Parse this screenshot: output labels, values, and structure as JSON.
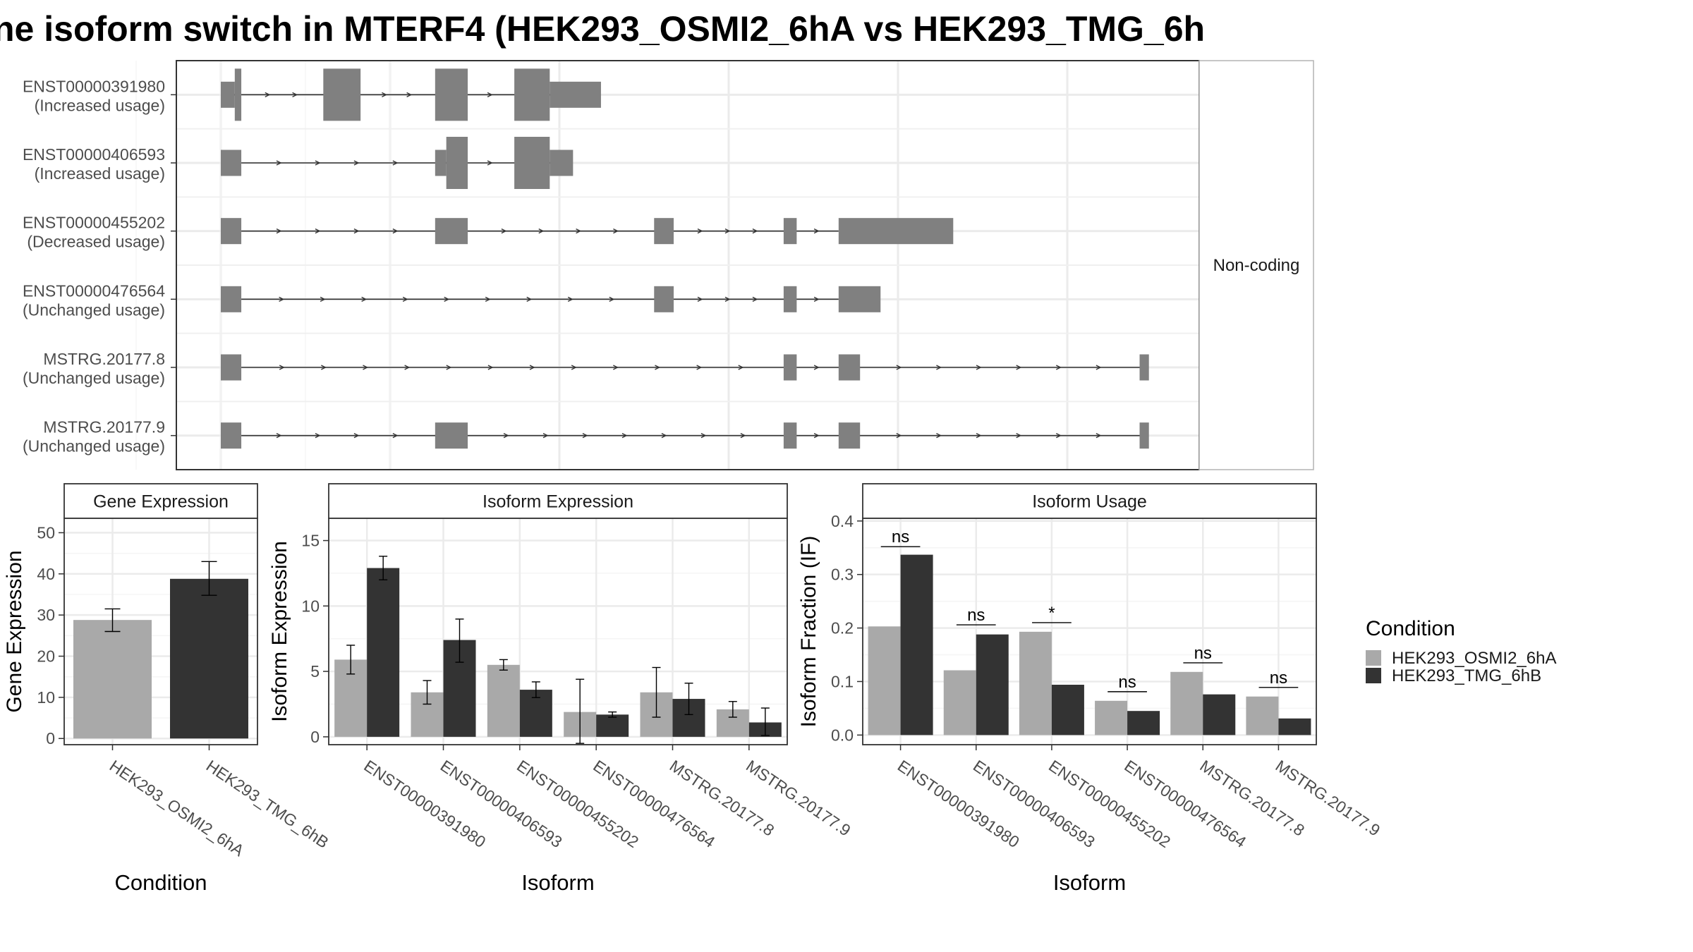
{
  "title": "ne isoform switch in MTERF4 (HEK293_OSMI2_6hA vs HEK293_TMG_6h",
  "colors": {
    "cond_a": "#a9a9a9",
    "cond_b": "#333333",
    "exon": "#808080",
    "grid": "#ebebeb",
    "panel_border": "#333333",
    "strip_fill": "#ffffff"
  },
  "structure": {
    "strip_label": "Non-coding",
    "x_range": [
      0,
      100
    ],
    "transcripts": [
      {
        "id": "ENST00000391980",
        "usage": "(Increased usage)",
        "exons": [
          [
            0,
            1.5,
            "narrow"
          ],
          [
            1.5,
            2.2,
            "thick"
          ],
          [
            11,
            15,
            "thick"
          ],
          [
            23,
            26.5,
            "thick"
          ],
          [
            31.5,
            35.3,
            "thick"
          ],
          [
            35.3,
            40.8,
            "narrow"
          ]
        ]
      },
      {
        "id": "ENST00000406593",
        "usage": "(Increased usage)",
        "exons": [
          [
            0,
            2.2,
            "narrow"
          ],
          [
            23,
            24.2,
            "narrow"
          ],
          [
            24.2,
            26.5,
            "thick"
          ],
          [
            31.5,
            35.3,
            "thick"
          ],
          [
            35.3,
            37.8,
            "narrow"
          ]
        ]
      },
      {
        "id": "ENST00000455202",
        "usage": "(Decreased usage)",
        "exons": [
          [
            0,
            2.2,
            "narrow"
          ],
          [
            23,
            26.5,
            "narrow"
          ],
          [
            46.5,
            48.6,
            "narrow"
          ],
          [
            60.4,
            61.8,
            "narrow"
          ],
          [
            66.3,
            78.6,
            "narrow"
          ]
        ]
      },
      {
        "id": "ENST00000476564",
        "usage": "(Unchanged usage)",
        "exons": [
          [
            0,
            2.2,
            "narrow"
          ],
          [
            46.5,
            48.6,
            "narrow"
          ],
          [
            60.4,
            61.8,
            "narrow"
          ],
          [
            66.3,
            70.8,
            "narrow"
          ]
        ]
      },
      {
        "id": "MSTRG.20177.8",
        "usage": "(Unchanged usage)",
        "exons": [
          [
            0,
            2.2,
            "narrow"
          ],
          [
            60.4,
            61.8,
            "narrow"
          ],
          [
            66.3,
            68.6,
            "narrow"
          ],
          [
            98.6,
            99.6,
            "narrow"
          ]
        ]
      },
      {
        "id": "MSTRG.20177.9",
        "usage": "(Unchanged usage)",
        "exons": [
          [
            0,
            2.2,
            "narrow"
          ],
          [
            23,
            26.5,
            "narrow"
          ],
          [
            60.4,
            61.8,
            "narrow"
          ],
          [
            66.3,
            68.6,
            "narrow"
          ],
          [
            98.6,
            99.6,
            "narrow"
          ]
        ]
      }
    ]
  },
  "chart_data": [
    {
      "type": "bar",
      "title": "Gene Expression",
      "xlabel": "Condition",
      "ylabel": "Gene Expression",
      "categories": [
        "HEK293_OSMI2_6hA",
        "HEK293_TMG_6hB"
      ],
      "values": [
        28.8,
        38.8
      ],
      "error": [
        [
          26.0,
          31.5
        ],
        [
          34.8,
          43.0
        ]
      ],
      "ylim": [
        -1.5,
        53.5
      ],
      "yticks": [
        "0",
        "10",
        "20",
        "30",
        "40",
        "50"
      ]
    },
    {
      "type": "bar",
      "title": "Isoform Expression",
      "xlabel": "Isoform",
      "ylabel": "Isoform Expression",
      "categories": [
        "ENST00000391980",
        "ENST00000406593",
        "ENST00000455202",
        "ENST00000476564",
        "MSTRG.20177.8",
        "MSTRG.20177.9"
      ],
      "series": [
        {
          "name": "HEK293_OSMI2_6hA",
          "values": [
            5.9,
            3.4,
            5.5,
            1.9,
            3.4,
            2.1
          ],
          "error": [
            [
              4.8,
              7.0
            ],
            [
              2.5,
              4.3
            ],
            [
              5.1,
              5.9
            ],
            [
              -0.5,
              4.4
            ],
            [
              1.5,
              5.3
            ],
            [
              1.5,
              2.7
            ]
          ]
        },
        {
          "name": "HEK293_TMG_6hB",
          "values": [
            12.9,
            7.4,
            3.6,
            1.7,
            2.9,
            1.1
          ],
          "error": [
            [
              12.0,
              13.8
            ],
            [
              5.7,
              9.0
            ],
            [
              3.0,
              4.2
            ],
            [
              1.5,
              1.9
            ],
            [
              1.7,
              4.1
            ],
            [
              0.1,
              2.2
            ]
          ]
        }
      ],
      "ylim": [
        -0.6,
        16.7
      ],
      "yticks": [
        "0",
        "5",
        "10",
        "15"
      ]
    },
    {
      "type": "bar",
      "title": "Isoform Usage",
      "xlabel": "Isoform",
      "ylabel": "Isoform Fraction (IF)",
      "categories": [
        "ENST00000391980",
        "ENST00000406593",
        "ENST00000455202",
        "ENST00000476564",
        "MSTRG.20177.8",
        "MSTRG.20177.9"
      ],
      "series": [
        {
          "name": "HEK293_OSMI2_6hA",
          "values": [
            0.203,
            0.121,
            0.193,
            0.064,
            0.118,
            0.072
          ]
        },
        {
          "name": "HEK293_TMG_6hB",
          "values": [
            0.337,
            0.188,
            0.094,
            0.045,
            0.076,
            0.031
          ]
        }
      ],
      "significance": [
        {
          "label": "ns",
          "y": 0.352
        },
        {
          "label": "ns",
          "y": 0.206
        },
        {
          "label": "*",
          "y": 0.21
        },
        {
          "label": "ns",
          "y": 0.081
        },
        {
          "label": "ns",
          "y": 0.135
        },
        {
          "label": "ns",
          "y": 0.089
        }
      ],
      "ylim": [
        -0.018,
        0.405
      ],
      "yticks": [
        "0.0",
        "0.1",
        "0.2",
        "0.3",
        "0.4"
      ]
    }
  ],
  "legend": {
    "title": "Condition",
    "items": [
      "HEK293_OSMI2_6hA",
      "HEK293_TMG_6hB"
    ]
  }
}
